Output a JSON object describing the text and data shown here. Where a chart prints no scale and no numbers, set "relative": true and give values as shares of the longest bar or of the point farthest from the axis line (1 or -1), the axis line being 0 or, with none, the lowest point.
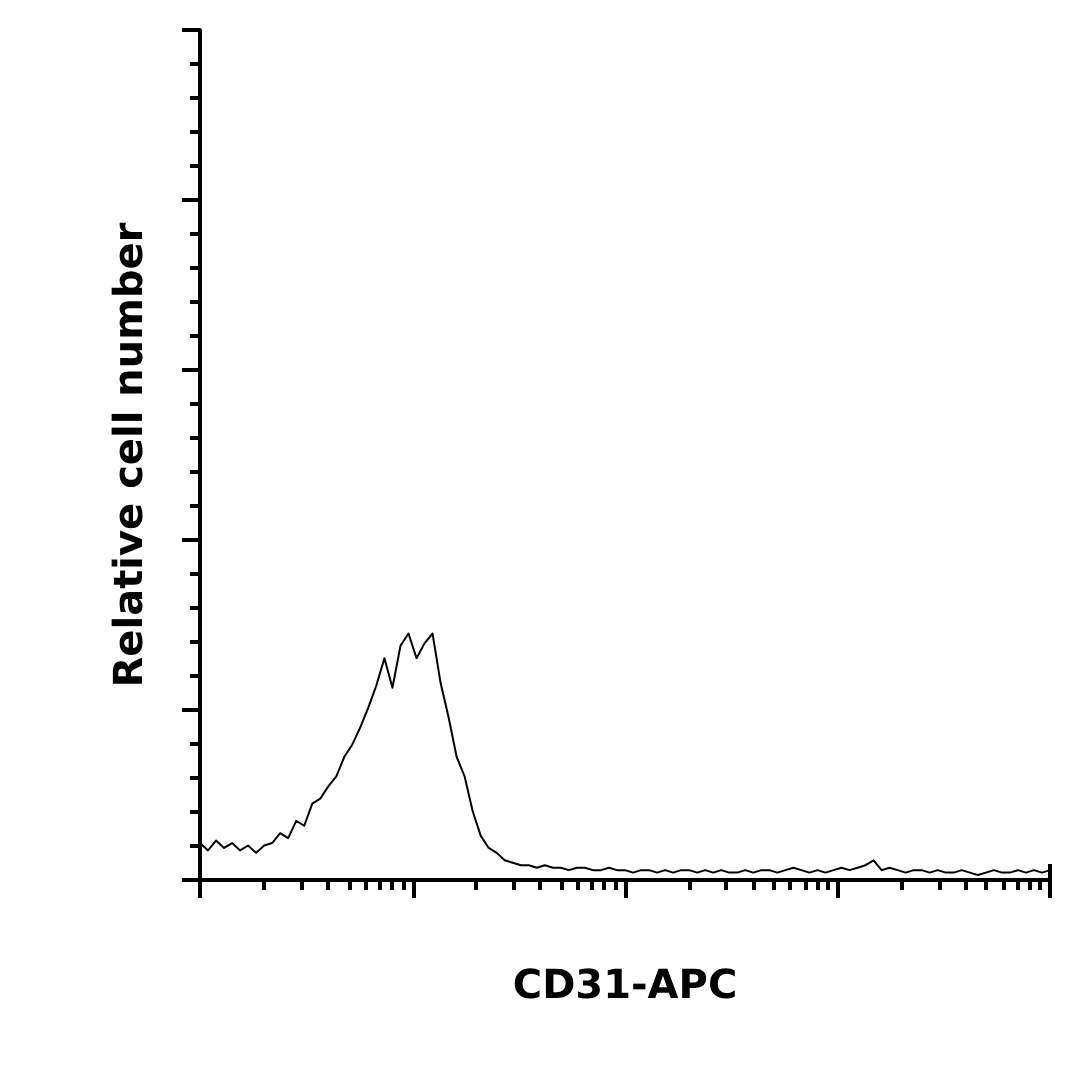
{
  "chart_data": {
    "type": "line",
    "relative": true,
    "xlabel": "CD31-APC",
    "ylabel": "Relative cell number",
    "color": "#000000",
    "grid": false,
    "categories": [
      null,
      null,
      null,
      null,
      null,
      null,
      null,
      null,
      null,
      null,
      null,
      null,
      null,
      null,
      null,
      null,
      null,
      null,
      null,
      null,
      null,
      null,
      null,
      null,
      null,
      null,
      null,
      null,
      null,
      null,
      null,
      null,
      null,
      null,
      null,
      null,
      null,
      null,
      null,
      null,
      null,
      null,
      null,
      null,
      null,
      null,
      null,
      null,
      null,
      null,
      null,
      null,
      null,
      null,
      null,
      null,
      null,
      null,
      null,
      null,
      null,
      null,
      null,
      null,
      null,
      null,
      null,
      null,
      null,
      null,
      null,
      null,
      null,
      null,
      null,
      null,
      null,
      null,
      null,
      null,
      null,
      null,
      null,
      null,
      null,
      null,
      null,
      null,
      null,
      null,
      null,
      null,
      null,
      null,
      null,
      null,
      null,
      null,
      null,
      null,
      null,
      null,
      null,
      null,
      null,
      null,
      null
    ],
    "values": [
      0.15,
      0.12,
      0.16,
      0.13,
      0.15,
      0.12,
      0.14,
      0.11,
      0.14,
      0.15,
      0.19,
      0.17,
      0.24,
      0.22,
      0.31,
      0.33,
      0.38,
      0.42,
      0.5,
      0.55,
      0.62,
      0.7,
      0.79,
      0.9,
      0.78,
      0.95,
      1.0,
      0.9,
      0.96,
      1.0,
      0.8,
      0.66,
      0.5,
      0.42,
      0.28,
      0.18,
      0.13,
      0.11,
      0.08,
      0.07,
      0.06,
      0.06,
      0.05,
      0.06,
      0.05,
      0.05,
      0.04,
      0.05,
      0.05,
      0.04,
      0.04,
      0.05,
      0.04,
      0.04,
      0.03,
      0.04,
      0.04,
      0.03,
      0.04,
      0.03,
      0.04,
      0.04,
      0.03,
      0.04,
      0.03,
      0.04,
      0.03,
      0.03,
      0.04,
      0.03,
      0.04,
      0.04,
      0.03,
      0.04,
      0.05,
      0.04,
      0.03,
      0.04,
      0.03,
      0.04,
      0.05,
      0.04,
      0.05,
      0.06,
      0.08,
      0.04,
      0.05,
      0.04,
      0.03,
      0.04,
      0.04,
      0.03,
      0.04,
      0.03,
      0.03,
      0.04,
      0.03,
      0.02,
      0.03,
      0.04,
      0.03,
      0.03,
      0.04,
      0.03,
      0.04,
      0.03,
      0.04
    ]
  }
}
